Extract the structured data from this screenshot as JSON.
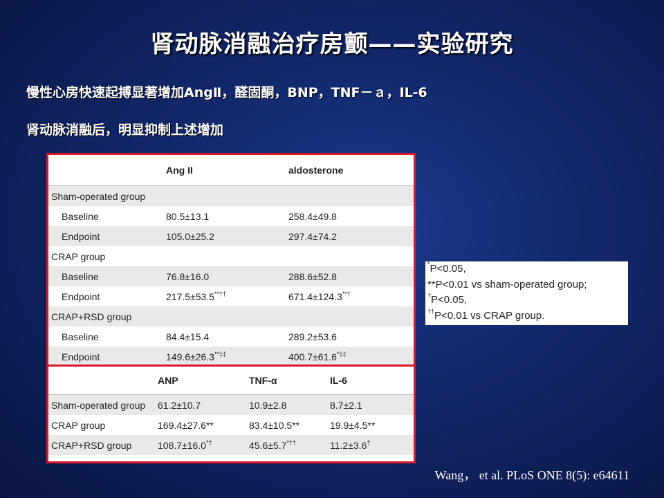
{
  "slide": {
    "title": "肾动脉消融治疗房颤——实验研究",
    "bullet1": "慢性心房快速起搏显著增加AngⅡ，醛固酮，BNP，TNF－ａ，IL-6",
    "bullet2": "肾动脉消融后，明显抑制上述增加",
    "citation": "Wang，  et al. PLoS ONE 8(5): e64611"
  },
  "table1": {
    "col1": "Ang II",
    "col2": "aldosterone",
    "g1": "Sham-operated group",
    "g1_r1": {
      "label": "Baseline",
      "ang": "80.5±13.1",
      "ald": "258.4±49.8"
    },
    "g1_r2": {
      "label": "Endpoint",
      "ang": "105.0±25.2",
      "ald": "297.4±74.2"
    },
    "g2": "CRAP group",
    "g2_r1": {
      "label": "Baseline",
      "ang": "76.8±16.0",
      "ald": "288.6±52.8"
    },
    "g2_r2": {
      "label": "Endpoint",
      "ang": "217.5±53.5",
      "ang_sup": "**††",
      "ald": "671.4±124.3",
      "ald_sup": "**†"
    },
    "g3": "CRAP+RSD group",
    "g3_r1": {
      "label": "Baseline",
      "ang": "84.4±15.4",
      "ald": "289.2±53.6"
    },
    "g3_r2": {
      "label": "Endpoint",
      "ang": "149.6±26.3",
      "ang_sup": "**‡‡",
      "ald": "400.7±61.6",
      "ald_sup": "*‡‡"
    }
  },
  "table2": {
    "col1": "ANP",
    "col2": "TNF-α",
    "col3": "IL-6",
    "r1": {
      "label": "Sham-operated group",
      "anp": "61.2±10.7",
      "tnf": "10.9±2.8",
      "il6": "8.7±2.1"
    },
    "r2": {
      "label": "CRAP group",
      "anp": "169.4±27.6**",
      "tnf": "83.4±10.5**",
      "il6": "19.9±4.5**"
    },
    "r3": {
      "label": "CRAP+RSD group",
      "anp": "108.7±16.0",
      "anp_sup": "*†",
      "tnf": "45.6±5.7",
      "tnf_sup": "*††",
      "il6": "11.2±3.6",
      "il6_sup": "†"
    }
  },
  "footnote": {
    "l1_mark": "*",
    "l1": "P<0.05,",
    "l2_mark": "",
    "l2": "**P<0.01 vs sham-operated group;",
    "l3_mark": "†",
    "l3": "P<0.05,",
    "l4_mark": "††",
    "l4": "P<0.01 vs CRAP group."
  }
}
